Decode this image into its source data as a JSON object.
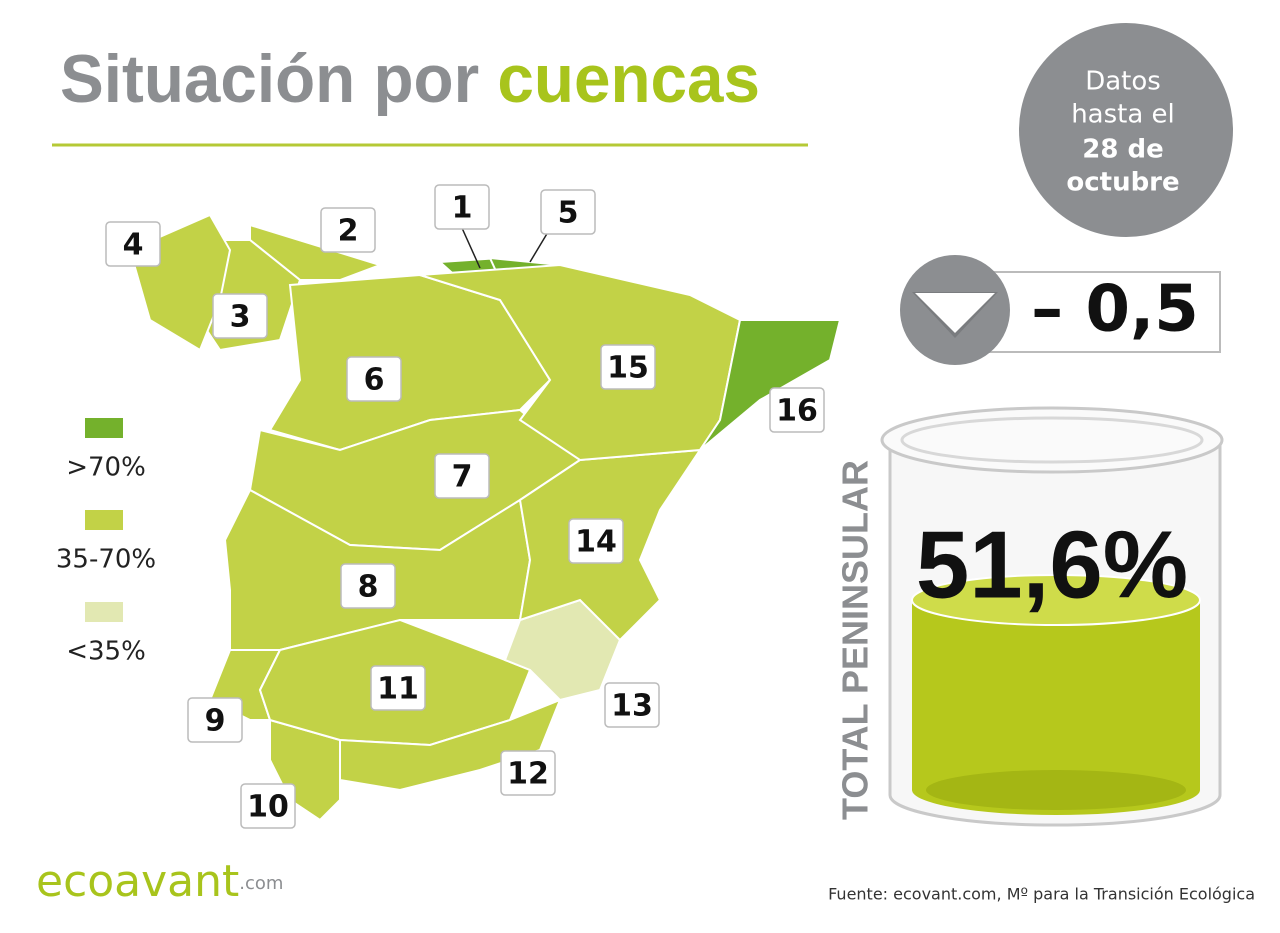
{
  "title": {
    "part1": "Situación por",
    "part2": "cuencas"
  },
  "date": {
    "line1": "Datos",
    "line2": "hasta el",
    "line3": "28 de",
    "line4": "octubre"
  },
  "change": "– 0,5",
  "total": {
    "label": "TOTAL PENINSULAR",
    "value": "51,6%"
  },
  "legend": [
    {
      "label": ">70%",
      "color": "#74b12c"
    },
    {
      "label": "35-70%",
      "color": "#c2d247"
    },
    {
      "label": "<35%",
      "color": "#e2e8b2"
    }
  ],
  "basins": [
    {
      "label": "1",
      "color": "#74b12c"
    },
    {
      "label": "2",
      "color": "#c2d247"
    },
    {
      "label": "3",
      "color": "#c2d247"
    },
    {
      "label": "4",
      "color": "#c2d247"
    },
    {
      "label": "5",
      "color": "#74b12c"
    },
    {
      "label": "6",
      "color": "#c2d247"
    },
    {
      "label": "7",
      "color": "#c2d247"
    },
    {
      "label": "8",
      "color": "#c2d247"
    },
    {
      "label": "9",
      "color": "#c2d247"
    },
    {
      "label": "10",
      "color": "#c2d247"
    },
    {
      "label": "11",
      "color": "#c2d247"
    },
    {
      "label": "12",
      "color": "#c2d247"
    },
    {
      "label": "13",
      "color": "#e2e8b2"
    },
    {
      "label": "14",
      "color": "#c2d247"
    },
    {
      "label": "15",
      "color": "#c2d247"
    },
    {
      "label": "16",
      "color": "#74b12c"
    }
  ],
  "footer": {
    "brand": "ecoavant",
    "domain": ".com",
    "source": "Fuente: ecovant.com, Mº para la Transición Ecológica"
  }
}
